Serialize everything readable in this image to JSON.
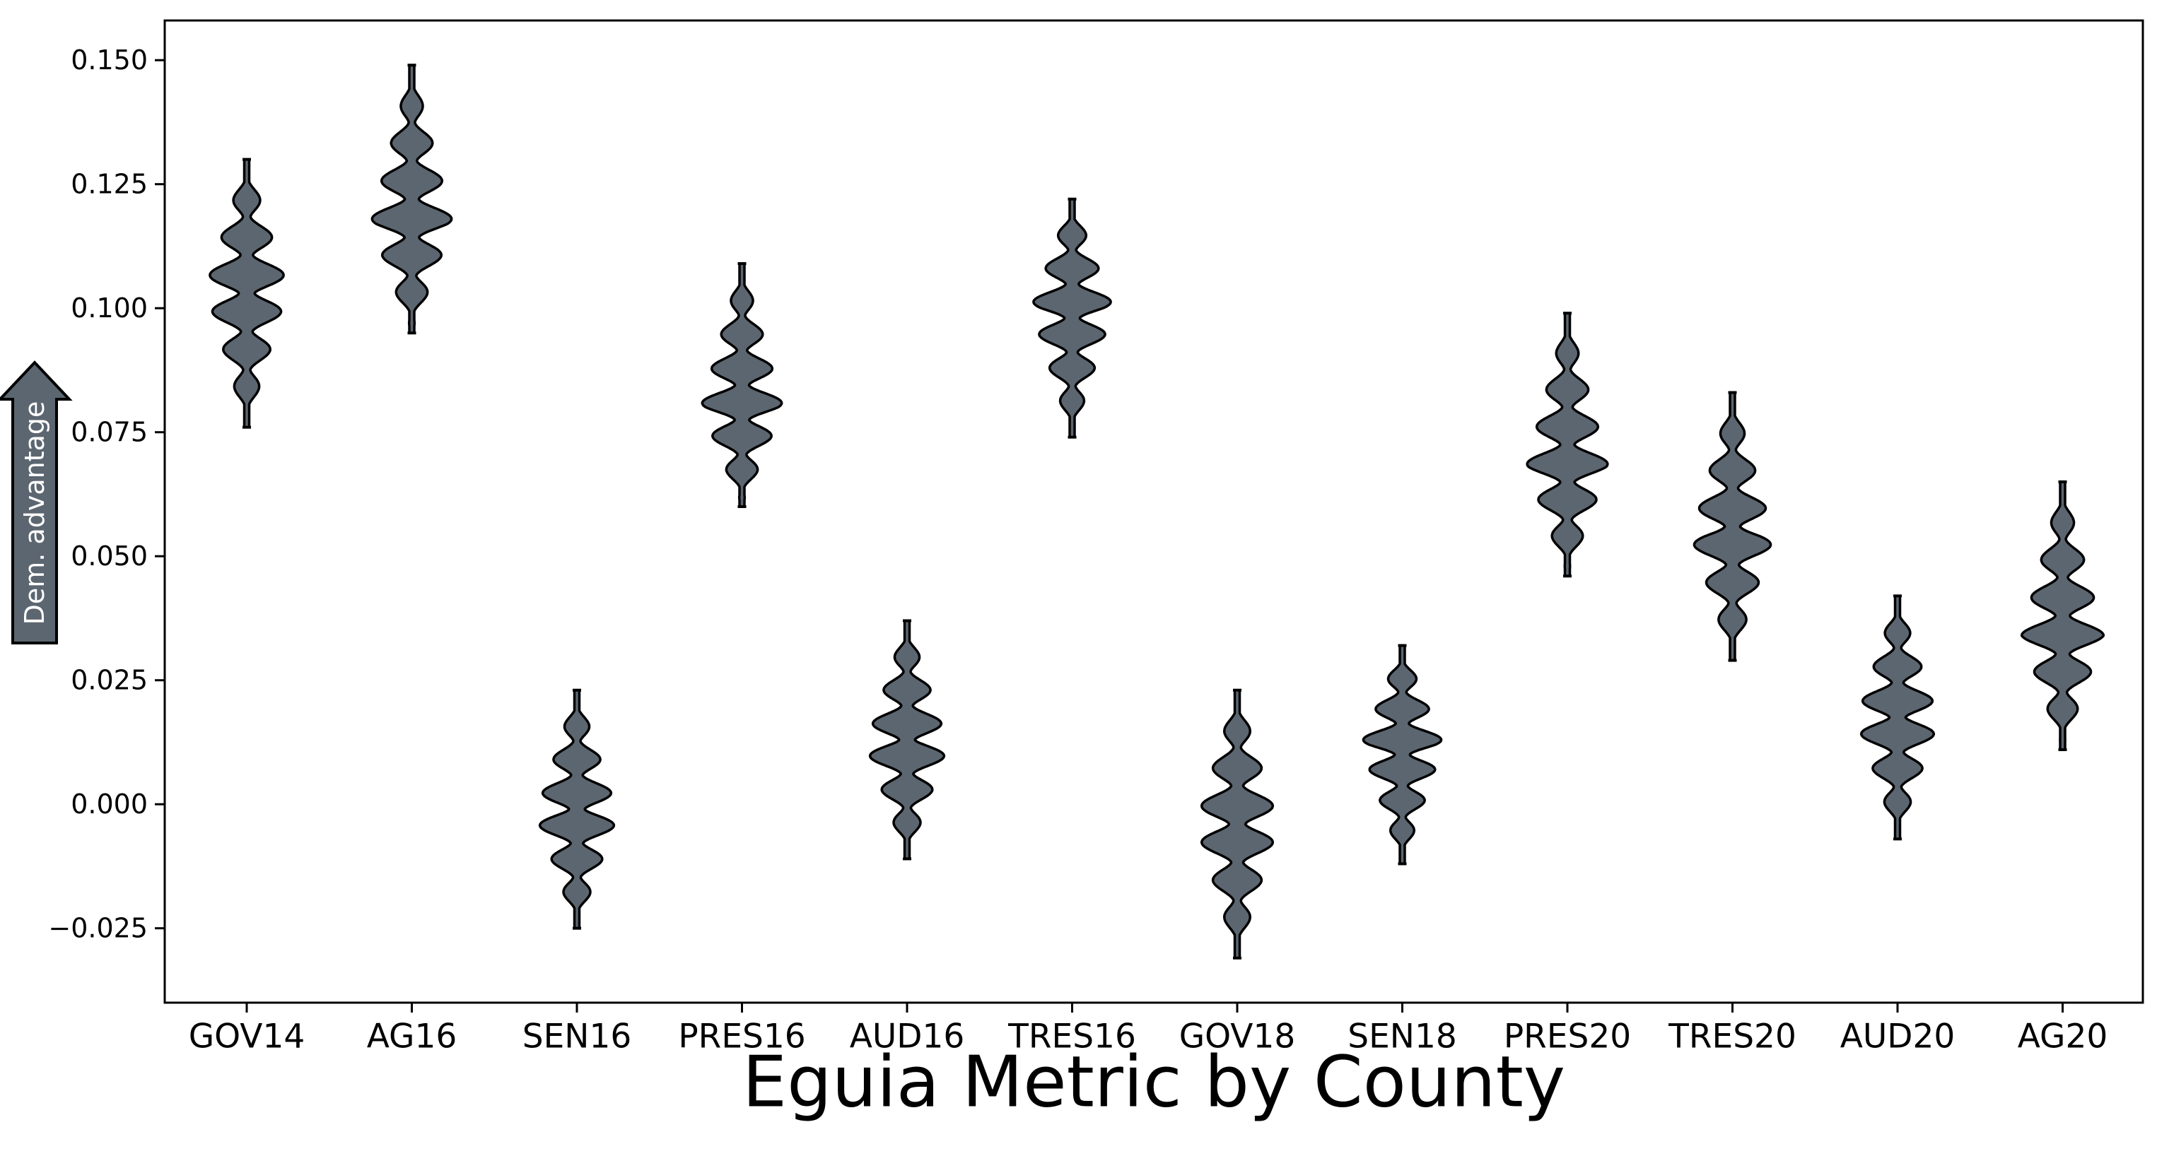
{
  "chart_data": {
    "type": "violin",
    "title": "Eguia Metric by County",
    "ylabel": "Dem. advantage",
    "xlabel": "",
    "ylim": [
      -0.04,
      0.158
    ],
    "yticks": [
      -0.025,
      0.0,
      0.025,
      0.05,
      0.075,
      0.1,
      0.125,
      0.15
    ],
    "ytick_labels": [
      "−0.025",
      "0.000",
      "0.025",
      "0.050",
      "0.075",
      "0.100",
      "0.125",
      "0.150"
    ],
    "grid": false,
    "legend": "none",
    "fill_color": "#5c6670",
    "edge_color": "#000000",
    "categories": [
      "GOV14",
      "AG16",
      "SEN16",
      "PRES16",
      "AUD16",
      "TRES16",
      "GOV18",
      "SEN18",
      "PRES20",
      "TRES20",
      "AUD20",
      "AG20"
    ],
    "violins": [
      {
        "min": 0.076,
        "max": 0.13,
        "center": 0.104
      },
      {
        "min": 0.095,
        "max": 0.149,
        "center": 0.117
      },
      {
        "min": -0.025,
        "max": 0.023,
        "center": -0.002
      },
      {
        "min": 0.06,
        "max": 0.109,
        "center": 0.08
      },
      {
        "min": -0.011,
        "max": 0.037,
        "center": 0.012
      },
      {
        "min": 0.074,
        "max": 0.122,
        "center": 0.1
      },
      {
        "min": -0.031,
        "max": 0.023,
        "center": -0.004
      },
      {
        "min": -0.012,
        "max": 0.032,
        "center": 0.012
      },
      {
        "min": 0.046,
        "max": 0.099,
        "center": 0.068
      },
      {
        "min": 0.029,
        "max": 0.083,
        "center": 0.054
      },
      {
        "min": -0.007,
        "max": 0.042,
        "center": 0.017
      },
      {
        "min": 0.011,
        "max": 0.065,
        "center": 0.034
      }
    ]
  }
}
